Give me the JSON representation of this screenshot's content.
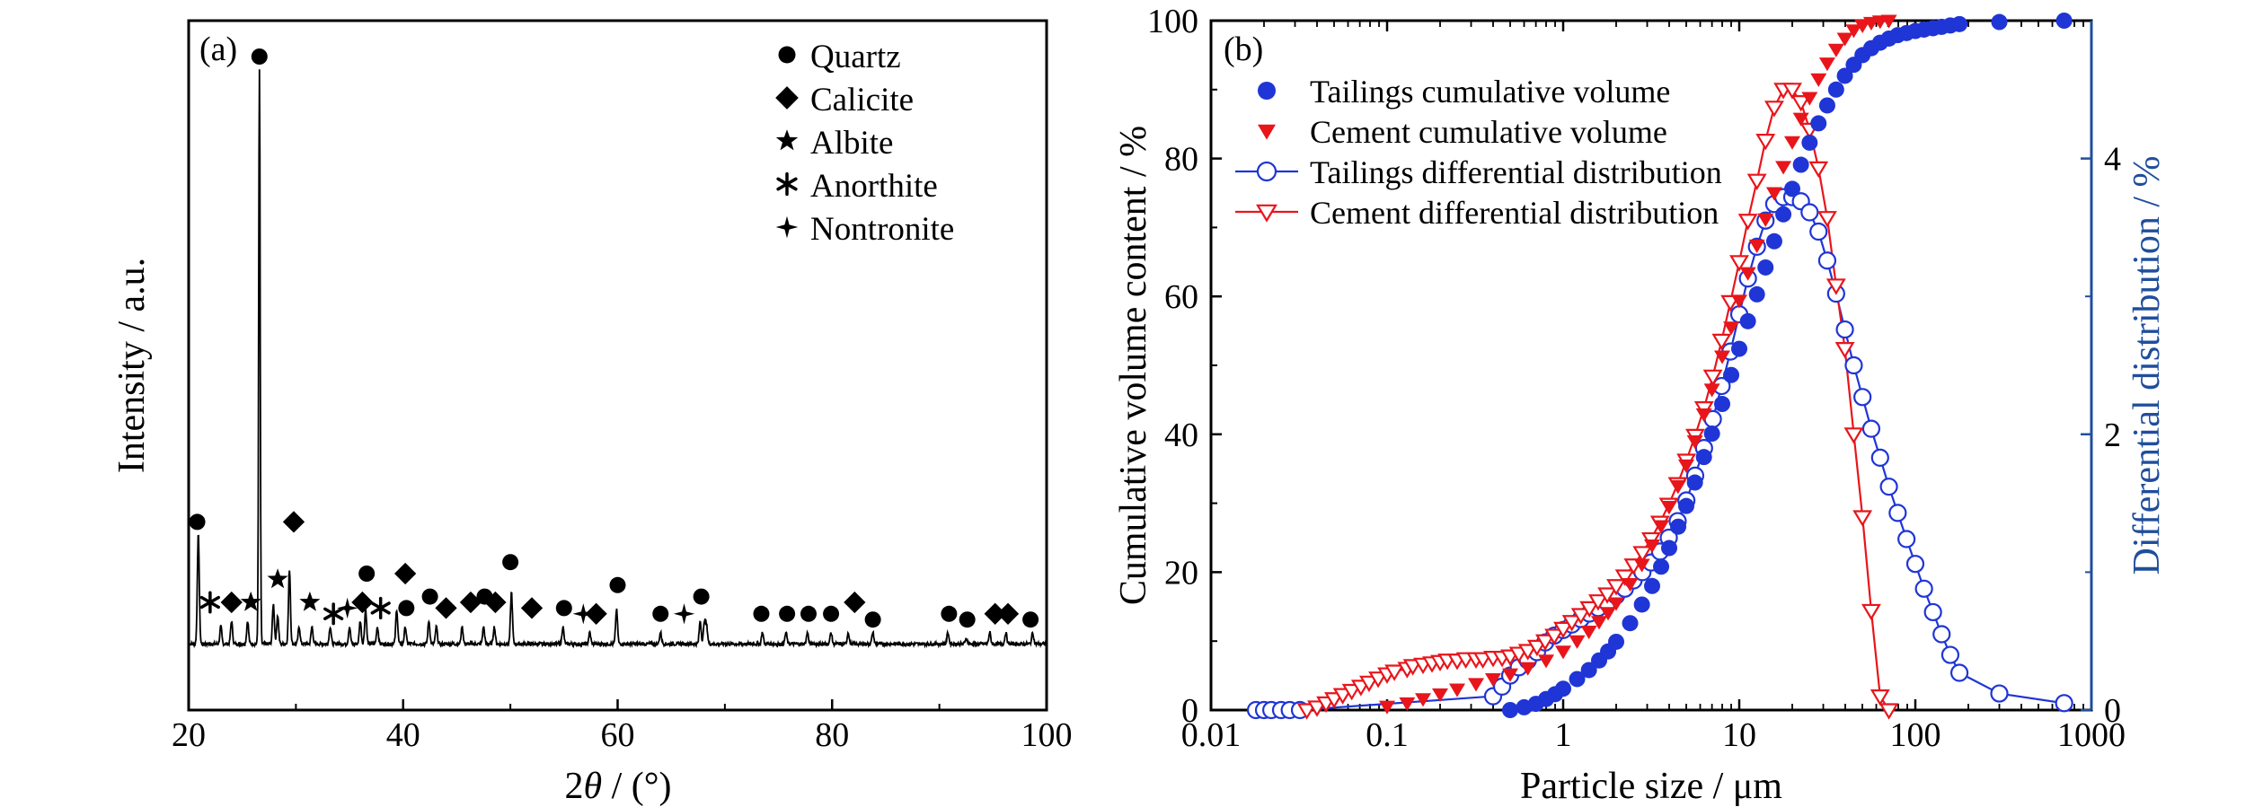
{
  "chart_data": [
    {
      "panel_label": "(a)",
      "type": "line",
      "xlabel_prefix": "2",
      "xlabel_theta": "θ",
      "xlabel_suffix": " / (°)",
      "ylabel": "Intensity / a.u.",
      "xlim": [
        20,
        100
      ],
      "x_ticks": [
        "20",
        "40",
        "60",
        "80",
        "100"
      ],
      "y_ticks_labeled": false,
      "colors": {
        "pattern": "#000000"
      },
      "legend": {
        "placement": "top-right",
        "entries": [
          {
            "symbol": "circle",
            "label": "Quartz"
          },
          {
            "symbol": "diamond",
            "label": "Calicite"
          },
          {
            "symbol": "star",
            "label": "Albite"
          },
          {
            "symbol": "asterisk",
            "label": "Anorthite"
          },
          {
            "symbol": "fourstar",
            "label": "Nontronite"
          }
        ]
      },
      "peaks": [
        {
          "x": 20.9,
          "h": 0.19
        },
        {
          "x": 26.6,
          "h": 1.0
        },
        {
          "x": 24.0,
          "h": 0.04
        },
        {
          "x": 23.0,
          "h": 0.03
        },
        {
          "x": 25.5,
          "h": 0.04
        },
        {
          "x": 27.9,
          "h": 0.07
        },
        {
          "x": 28.3,
          "h": 0.05
        },
        {
          "x": 29.4,
          "h": 0.13
        },
        {
          "x": 30.3,
          "h": 0.03
        },
        {
          "x": 31.5,
          "h": 0.03
        },
        {
          "x": 33.2,
          "h": 0.03
        },
        {
          "x": 35.0,
          "h": 0.03
        },
        {
          "x": 36.0,
          "h": 0.04
        },
        {
          "x": 36.5,
          "h": 0.06
        },
        {
          "x": 37.6,
          "h": 0.03
        },
        {
          "x": 39.4,
          "h": 0.06
        },
        {
          "x": 40.2,
          "h": 0.03
        },
        {
          "x": 42.4,
          "h": 0.04
        },
        {
          "x": 43.1,
          "h": 0.03
        },
        {
          "x": 45.5,
          "h": 0.03
        },
        {
          "x": 47.5,
          "h": 0.03
        },
        {
          "x": 48.5,
          "h": 0.03
        },
        {
          "x": 50.1,
          "h": 0.09
        },
        {
          "x": 54.9,
          "h": 0.03
        },
        {
          "x": 57.4,
          "h": 0.02
        },
        {
          "x": 59.9,
          "h": 0.06
        },
        {
          "x": 64.0,
          "h": 0.02
        },
        {
          "x": 67.7,
          "h": 0.04
        },
        {
          "x": 68.1,
          "h": 0.04
        },
        {
          "x": 68.3,
          "h": 0.03
        },
        {
          "x": 73.5,
          "h": 0.02
        },
        {
          "x": 75.7,
          "h": 0.02
        },
        {
          "x": 77.7,
          "h": 0.02
        },
        {
          "x": 79.9,
          "h": 0.02
        },
        {
          "x": 81.5,
          "h": 0.02
        },
        {
          "x": 83.8,
          "h": 0.02
        },
        {
          "x": 90.8,
          "h": 0.02
        },
        {
          "x": 92.5,
          "h": 0.01
        },
        {
          "x": 94.7,
          "h": 0.02
        },
        {
          "x": 96.2,
          "h": 0.02
        },
        {
          "x": 98.7,
          "h": 0.02
        }
      ],
      "markers": [
        {
          "symbol": "circle",
          "x": 20.8,
          "h": 0.19
        },
        {
          "symbol": "circle",
          "x": 26.6,
          "h": 1.0
        },
        {
          "symbol": "asterisk",
          "x": 22.0,
          "h": 0.05
        },
        {
          "symbol": "diamond",
          "x": 24.0,
          "h": 0.05
        },
        {
          "symbol": "star",
          "x": 25.8,
          "h": 0.05
        },
        {
          "symbol": "star",
          "x": 28.3,
          "h": 0.09
        },
        {
          "symbol": "diamond",
          "x": 29.8,
          "h": 0.19
        },
        {
          "symbol": "star",
          "x": 31.3,
          "h": 0.05
        },
        {
          "symbol": "asterisk",
          "x": 33.5,
          "h": 0.03
        },
        {
          "symbol": "fourstar",
          "x": 34.8,
          "h": 0.04
        },
        {
          "symbol": "diamond",
          "x": 36.2,
          "h": 0.05
        },
        {
          "symbol": "circle",
          "x": 36.6,
          "h": 0.1
        },
        {
          "symbol": "asterisk",
          "x": 37.9,
          "h": 0.04
        },
        {
          "symbol": "diamond",
          "x": 40.2,
          "h": 0.1
        },
        {
          "symbol": "circle",
          "x": 40.3,
          "h": 0.04
        },
        {
          "symbol": "circle",
          "x": 42.5,
          "h": 0.06
        },
        {
          "symbol": "diamond",
          "x": 44.0,
          "h": 0.04
        },
        {
          "symbol": "diamond",
          "x": 46.3,
          "h": 0.05
        },
        {
          "symbol": "circle",
          "x": 47.6,
          "h": 0.06
        },
        {
          "symbol": "diamond",
          "x": 48.6,
          "h": 0.05
        },
        {
          "symbol": "circle",
          "x": 50.0,
          "h": 0.12
        },
        {
          "symbol": "diamond",
          "x": 52.0,
          "h": 0.04
        },
        {
          "symbol": "circle",
          "x": 55.0,
          "h": 0.04
        },
        {
          "symbol": "fourstar",
          "x": 56.8,
          "h": 0.03
        },
        {
          "symbol": "diamond",
          "x": 58.0,
          "h": 0.03
        },
        {
          "symbol": "circle",
          "x": 60.0,
          "h": 0.08
        },
        {
          "symbol": "circle",
          "x": 64.0,
          "h": 0.03
        },
        {
          "symbol": "fourstar",
          "x": 66.2,
          "h": 0.03
        },
        {
          "symbol": "circle",
          "x": 67.8,
          "h": 0.06
        },
        {
          "symbol": "circle",
          "x": 73.4,
          "h": 0.03
        },
        {
          "symbol": "circle",
          "x": 75.8,
          "h": 0.03
        },
        {
          "symbol": "circle",
          "x": 77.8,
          "h": 0.03
        },
        {
          "symbol": "circle",
          "x": 79.9,
          "h": 0.03
        },
        {
          "symbol": "diamond",
          "x": 82.1,
          "h": 0.05
        },
        {
          "symbol": "circle",
          "x": 83.8,
          "h": 0.02
        },
        {
          "symbol": "circle",
          "x": 90.9,
          "h": 0.03
        },
        {
          "symbol": "circle",
          "x": 92.6,
          "h": 0.02
        },
        {
          "symbol": "diamond",
          "x": 95.2,
          "h": 0.03
        },
        {
          "symbol": "diamond",
          "x": 96.4,
          "h": 0.03
        },
        {
          "symbol": "circle",
          "x": 98.5,
          "h": 0.02
        }
      ]
    },
    {
      "panel_label": "(b)",
      "type": "scatter",
      "xlabel": "Particle size / μm",
      "ylabel_left": "Cumulative volume content / %",
      "ylabel_right": "Differential distribution / %",
      "x_scale": "log",
      "xlim": [
        0.01,
        1000
      ],
      "ylim_left": [
        0,
        100
      ],
      "ylim_right": [
        0,
        5
      ],
      "x_ticks": [
        "0.01",
        "0.1",
        "1",
        "10",
        "100",
        "1000"
      ],
      "y_ticks_left": [
        "0",
        "20",
        "40",
        "60",
        "80",
        "100"
      ],
      "y_ticks_right": [
        "0",
        "2",
        "4"
      ],
      "legend_placement": "top-left",
      "colors": {
        "tailings": "#1f35d6",
        "cement": "#e8151b",
        "right_axis": "#1f4e9c"
      },
      "series": [
        {
          "name": "Tailings cumulative volume",
          "axis": "left",
          "marker": "filled-circle",
          "color": "#1f35d6",
          "x": [
            0.5,
            0.6,
            0.7,
            0.8,
            0.9,
            1.0,
            1.2,
            1.4,
            1.6,
            1.8,
            2.0,
            2.4,
            2.8,
            3.2,
            3.6,
            4.0,
            4.5,
            5.0,
            5.6,
            6.3,
            7.0,
            8.0,
            9.0,
            10.0,
            11.2,
            12.6,
            14.1,
            15.8,
            17.8,
            20.0,
            22.4,
            25.1,
            28.2,
            31.6,
            35.5,
            39.8,
            44.7,
            50.1,
            56.2,
            63.1,
            70.8,
            79.4,
            89.1,
            100,
            112,
            126,
            141,
            158,
            178,
            300,
            700
          ],
          "y": [
            0.0,
            0.4,
            0.9,
            1.6,
            2.3,
            3.1,
            4.5,
            5.8,
            7.2,
            8.5,
            9.9,
            12.6,
            15.3,
            18.0,
            20.8,
            23.5,
            26.6,
            29.6,
            33.0,
            36.7,
            40.1,
            44.4,
            48.6,
            52.4,
            56.4,
            60.3,
            64.2,
            68.0,
            71.9,
            75.6,
            79.1,
            82.3,
            85.1,
            87.7,
            90.0,
            92.0,
            93.6,
            95.0,
            96.0,
            96.8,
            97.4,
            97.9,
            98.2,
            98.5,
            98.7,
            98.9,
            99.1,
            99.3,
            99.5,
            99.8,
            100.0
          ]
        },
        {
          "name": "Cement cumulative volume",
          "axis": "left",
          "marker": "filled-triangle-down",
          "color": "#e8151b",
          "x": [
            0.1,
            0.13,
            0.16,
            0.2,
            0.25,
            0.32,
            0.4,
            0.5,
            0.63,
            0.8,
            1.0,
            1.2,
            1.4,
            1.6,
            1.8,
            2.0,
            2.4,
            2.8,
            3.2,
            3.6,
            4.0,
            4.5,
            5.0,
            5.6,
            6.3,
            7.0,
            8.0,
            9.0,
            10.0,
            11.2,
            12.6,
            14.1,
            15.8,
            17.8,
            20.0,
            22.4,
            25.1,
            28.2,
            31.6,
            35.5,
            39.8,
            44.7,
            50.1,
            56.2,
            63.1,
            70.8
          ],
          "y": [
            0.5,
            1.0,
            1.6,
            2.3,
            3.0,
            3.8,
            4.5,
            5.2,
            6.1,
            7.2,
            8.5,
            10.0,
            11.4,
            12.8,
            14.1,
            15.5,
            18.3,
            21.1,
            23.9,
            26.7,
            29.5,
            32.5,
            35.5,
            39.0,
            42.9,
            46.5,
            51.3,
            55.5,
            59.4,
            63.4,
            67.4,
            71.2,
            75.0,
            78.8,
            82.4,
            85.8,
            88.8,
            91.5,
            93.8,
            95.8,
            97.4,
            98.6,
            99.3,
            99.7,
            99.9,
            100.0
          ]
        },
        {
          "name": "Tailings differential distribution",
          "axis": "right",
          "marker": "open-circle-line",
          "color": "#1f35d6",
          "x": [
            0.018,
            0.02,
            0.022,
            0.025,
            0.028,
            0.032,
            0.4,
            0.45,
            0.5,
            0.56,
            0.63,
            0.71,
            0.79,
            0.89,
            1.0,
            1.12,
            1.26,
            1.41,
            1.58,
            1.78,
            2.0,
            2.24,
            2.51,
            2.82,
            3.16,
            3.55,
            3.98,
            4.47,
            5.01,
            5.62,
            6.31,
            7.08,
            7.94,
            8.91,
            10.0,
            11.2,
            12.6,
            14.1,
            15.8,
            17.8,
            20.0,
            22.4,
            25.1,
            28.2,
            31.6,
            35.5,
            39.8,
            44.7,
            50.1,
            56.2,
            63.1,
            70.8,
            79.4,
            89.1,
            100,
            112,
            126,
            141,
            158,
            178,
            300,
            700
          ],
          "y": [
            0.0,
            0.0,
            0.0,
            0.0,
            0.0,
            0.0,
            0.1,
            0.17,
            0.25,
            0.31,
            0.36,
            0.42,
            0.49,
            0.54,
            0.58,
            0.62,
            0.66,
            0.7,
            0.74,
            0.78,
            0.83,
            0.88,
            0.94,
            1.0,
            1.07,
            1.15,
            1.25,
            1.37,
            1.52,
            1.7,
            1.9,
            2.11,
            2.35,
            2.6,
            2.87,
            3.13,
            3.36,
            3.55,
            3.67,
            3.72,
            3.72,
            3.69,
            3.61,
            3.47,
            3.26,
            3.02,
            2.76,
            2.5,
            2.27,
            2.04,
            1.83,
            1.62,
            1.43,
            1.24,
            1.06,
            0.88,
            0.71,
            0.55,
            0.4,
            0.27,
            0.12,
            0.05
          ]
        },
        {
          "name": "Cement differential distribution",
          "axis": "right",
          "marker": "open-triangle-down-line",
          "color": "#e8151b",
          "x": [
            0.035,
            0.04,
            0.045,
            0.05,
            0.056,
            0.063,
            0.071,
            0.079,
            0.089,
            0.1,
            0.11,
            0.13,
            0.14,
            0.16,
            0.18,
            0.2,
            0.22,
            0.25,
            0.28,
            0.32,
            0.35,
            0.4,
            0.45,
            0.5,
            0.56,
            0.63,
            0.71,
            0.79,
            0.89,
            1.0,
            1.12,
            1.26,
            1.41,
            1.58,
            1.78,
            2.0,
            2.24,
            2.51,
            2.82,
            3.16,
            3.55,
            3.98,
            4.47,
            5.01,
            5.62,
            6.31,
            7.08,
            7.94,
            8.91,
            10.0,
            11.2,
            12.6,
            14.1,
            15.8,
            17.8,
            20.0,
            22.4,
            25.1,
            28.2,
            31.6,
            35.5,
            39.8,
            44.7,
            50.1,
            56.2,
            63.1,
            70.8
          ],
          "y": [
            0.0,
            0.02,
            0.05,
            0.08,
            0.11,
            0.14,
            0.17,
            0.2,
            0.23,
            0.26,
            0.28,
            0.3,
            0.32,
            0.33,
            0.34,
            0.35,
            0.36,
            0.36,
            0.37,
            0.37,
            0.37,
            0.38,
            0.38,
            0.39,
            0.41,
            0.43,
            0.46,
            0.5,
            0.54,
            0.59,
            0.64,
            0.69,
            0.74,
            0.79,
            0.84,
            0.9,
            0.97,
            1.05,
            1.14,
            1.24,
            1.36,
            1.49,
            1.64,
            1.81,
            1.99,
            2.19,
            2.42,
            2.68,
            2.96,
            3.25,
            3.55,
            3.84,
            4.13,
            4.37,
            4.5,
            4.5,
            4.41,
            4.21,
            3.93,
            3.57,
            3.08,
            2.62,
            2.0,
            1.4,
            0.72,
            0.1,
            0.0
          ]
        }
      ]
    }
  ]
}
